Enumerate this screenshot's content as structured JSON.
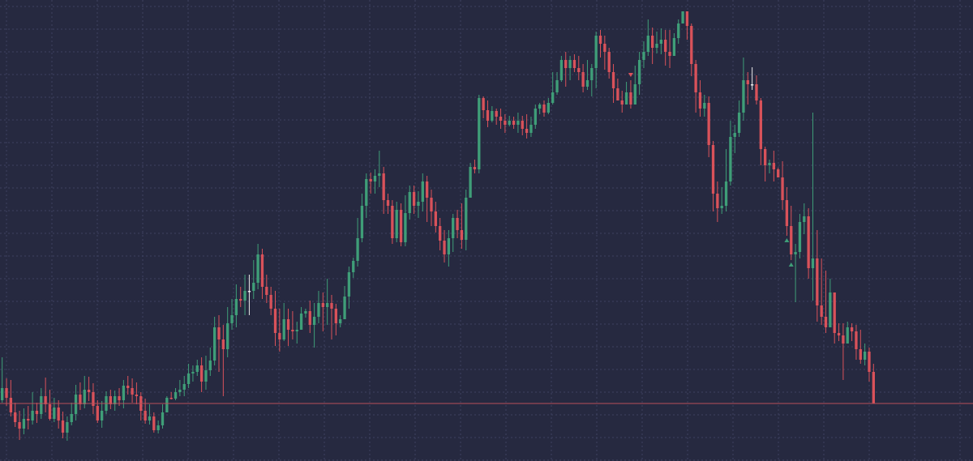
{
  "chart_data": {
    "type": "candlestick",
    "ylim": [
      0,
      569
    ],
    "grid": true,
    "colors": {
      "background": "#262940",
      "grid": "#3d4160",
      "up": "#3f9e78",
      "down": "#d9525a",
      "doji": "#e8e8e8",
      "price_line": "#b8505a"
    },
    "horizontal_line": {
      "value": 71,
      "name": ""
    },
    "markers": [
      {
        "index": 145,
        "kind": "down-arrow",
        "color": "#d9525a"
      },
      {
        "index": 181,
        "kind": "up-arrow",
        "color": "#3f9e78"
      },
      {
        "index": 182,
        "kind": "up-arrow",
        "color": "#3f9e78"
      }
    ],
    "candles": [
      [
        75,
        90,
        128,
        72
      ],
      [
        90,
        78,
        102,
        68
      ],
      [
        78,
        60,
        100,
        55
      ],
      [
        60,
        48,
        72,
        42
      ],
      [
        48,
        40,
        62,
        26
      ],
      [
        40,
        52,
        65,
        33
      ],
      [
        52,
        50,
        68,
        39
      ],
      [
        50,
        62,
        85,
        45
      ],
      [
        62,
        58,
        72,
        47
      ],
      [
        58,
        80,
        90,
        52
      ],
      [
        80,
        70,
        103,
        60
      ],
      [
        70,
        52,
        88,
        50
      ],
      [
        52,
        66,
        78,
        48
      ],
      [
        66,
        50,
        75,
        40
      ],
      [
        50,
        35,
        61,
        28
      ],
      [
        35,
        48,
        55,
        25
      ],
      [
        48,
        58,
        72,
        44
      ],
      [
        58,
        82,
        94,
        50
      ],
      [
        82,
        70,
        97,
        63
      ],
      [
        70,
        88,
        105,
        65
      ],
      [
        88,
        85,
        104,
        74
      ],
      [
        85,
        68,
        96,
        58
      ],
      [
        68,
        50,
        75,
        47
      ],
      [
        50,
        62,
        74,
        41
      ],
      [
        62,
        80,
        86,
        58
      ],
      [
        80,
        70,
        88,
        64
      ],
      [
        70,
        80,
        87,
        62
      ],
      [
        80,
        75,
        90,
        68
      ],
      [
        75,
        93,
        100,
        65
      ],
      [
        93,
        90,
        105,
        82
      ],
      [
        90,
        82,
        102,
        72
      ],
      [
        82,
        80,
        97,
        70
      ],
      [
        80,
        62,
        85,
        50
      ],
      [
        62,
        50,
        77,
        46
      ],
      [
        50,
        55,
        70,
        45
      ],
      [
        55,
        38,
        60,
        35
      ],
      [
        38,
        44,
        50,
        34
      ],
      [
        44,
        60,
        70,
        40
      ],
      [
        60,
        78,
        80,
        75
      ],
      [
        78,
        77,
        85,
        76
      ],
      [
        77,
        85,
        90,
        75
      ],
      [
        85,
        88,
        100,
        80
      ],
      [
        88,
        95,
        105,
        80
      ],
      [
        95,
        108,
        120,
        90
      ],
      [
        108,
        110,
        118,
        98
      ],
      [
        110,
        118,
        125,
        105
      ],
      [
        118,
        98,
        128,
        85
      ],
      [
        98,
        112,
        130,
        88
      ],
      [
        112,
        124,
        140,
        105
      ],
      [
        124,
        165,
        178,
        118
      ],
      [
        165,
        150,
        180,
        110
      ],
      [
        150,
        138,
        168,
        80
      ],
      [
        138,
        170,
        190,
        128
      ],
      [
        170,
        180,
        200,
        162
      ],
      [
        180,
        200,
        218,
        165
      ],
      [
        200,
        198,
        215,
        190
      ],
      [
        198,
        210,
        230,
        180
      ],
      [
        210,
        210,
        230,
        180
      ],
      [
        210,
        220,
        248,
        200
      ],
      [
        220,
        255,
        268,
        212
      ],
      [
        255,
        215,
        262,
        200
      ],
      [
        215,
        205,
        230,
        195
      ],
      [
        205,
        188,
        215,
        180
      ],
      [
        188,
        158,
        210,
        142
      ],
      [
        158,
        150,
        188,
        135
      ],
      [
        150,
        175,
        195,
        148
      ],
      [
        175,
        162,
        188,
        142
      ],
      [
        162,
        160,
        185,
        150
      ],
      [
        160,
        162,
        172,
        145
      ],
      [
        162,
        182,
        190,
        162
      ],
      [
        182,
        185,
        188,
        177
      ],
      [
        185,
        168,
        198,
        158
      ],
      [
        168,
        178,
        195,
        140
      ],
      [
        178,
        195,
        210,
        170
      ],
      [
        195,
        190,
        208,
        160
      ],
      [
        190,
        195,
        225,
        168
      ],
      [
        195,
        188,
        205,
        150
      ],
      [
        188,
        170,
        194,
        155
      ],
      [
        170,
        175,
        180,
        165
      ],
      [
        175,
        203,
        216,
        178
      ],
      [
        203,
        233,
        240,
        188
      ],
      [
        233,
        247,
        251,
        226
      ],
      [
        247,
        275,
        300,
        240
      ],
      [
        275,
        315,
        330,
        270
      ],
      [
        315,
        348,
        355,
        300
      ],
      [
        348,
        345,
        356,
        330
      ],
      [
        345,
        352,
        360,
        330
      ],
      [
        352,
        355,
        383,
        338
      ],
      [
        355,
        322,
        363,
        305
      ],
      [
        322,
        315,
        330,
        305
      ],
      [
        315,
        275,
        322,
        268
      ],
      [
        275,
        310,
        320,
        270
      ],
      [
        310,
        270,
        318,
        265
      ],
      [
        270,
        306,
        328,
        265
      ],
      [
        306,
        332,
        340,
        298
      ],
      [
        332,
        315,
        340,
        305
      ],
      [
        315,
        320,
        333,
        300
      ],
      [
        320,
        345,
        355,
        308
      ],
      [
        345,
        325,
        352,
        295
      ],
      [
        325,
        308,
        335,
        290
      ],
      [
        308,
        290,
        320,
        282
      ],
      [
        290,
        272,
        300,
        260
      ],
      [
        272,
        255,
        285,
        245
      ],
      [
        255,
        275,
        285,
        240
      ],
      [
        275,
        300,
        305,
        258
      ],
      [
        300,
        285,
        310,
        275
      ],
      [
        285,
        273,
        318,
        262
      ],
      [
        273,
        325,
        335,
        260
      ],
      [
        325,
        363,
        368,
        345
      ],
      [
        363,
        360,
        372,
        355
      ],
      [
        360,
        448,
        452,
        355
      ],
      [
        448,
        433,
        450,
        423
      ],
      [
        433,
        420,
        445,
        412
      ],
      [
        420,
        432,
        438,
        418
      ],
      [
        432,
        425,
        435,
        415
      ],
      [
        425,
        420,
        435,
        410
      ],
      [
        420,
        415,
        428,
        405
      ],
      [
        415,
        420,
        426,
        413
      ],
      [
        420,
        415,
        425,
        410
      ],
      [
        415,
        420,
        430,
        405
      ],
      [
        420,
        410,
        426,
        402
      ],
      [
        410,
        405,
        428,
        398
      ],
      [
        405,
        415,
        425,
        400
      ],
      [
        415,
        435,
        440,
        410
      ],
      [
        435,
        440,
        442,
        428
      ],
      [
        440,
        430,
        445,
        425
      ],
      [
        430,
        442,
        448,
        428
      ],
      [
        442,
        455,
        480,
        440
      ],
      [
        455,
        470,
        480,
        452
      ],
      [
        470,
        495,
        500,
        468
      ],
      [
        495,
        485,
        505,
        462
      ],
      [
        485,
        495,
        500,
        470
      ],
      [
        495,
        485,
        502,
        480
      ],
      [
        485,
        480,
        500,
        470
      ],
      [
        480,
        462,
        490,
        455
      ],
      [
        462,
        470,
        495,
        458
      ],
      [
        470,
        485,
        490,
        450
      ],
      [
        485,
        525,
        530,
        460
      ],
      [
        525,
        515,
        532,
        498
      ],
      [
        515,
        505,
        525,
        483
      ],
      [
        505,
        480,
        510,
        472
      ],
      [
        480,
        460,
        490,
        442
      ],
      [
        460,
        445,
        472,
        445
      ],
      [
        445,
        440,
        457,
        430
      ],
      [
        440,
        455,
        468,
        440
      ],
      [
        455,
        440,
        470,
        435
      ],
      [
        440,
        465,
        488,
        440
      ],
      [
        465,
        495,
        505,
        452
      ],
      [
        495,
        505,
        518,
        485
      ],
      [
        505,
        525,
        545,
        500
      ],
      [
        525,
        510,
        535,
        490
      ],
      [
        510,
        515,
        530,
        503
      ],
      [
        515,
        520,
        534,
        502
      ],
      [
        520,
        505,
        532,
        488
      ],
      [
        505,
        500,
        532,
        485
      ],
      [
        500,
        522,
        528,
        500
      ],
      [
        522,
        540,
        545,
        515
      ],
      [
        540,
        555,
        550,
        545
      ],
      [
        555,
        537,
        555,
        520
      ],
      [
        537,
        490,
        540,
        475
      ],
      [
        490,
        455,
        495,
        430
      ],
      [
        455,
        435,
        470,
        425
      ],
      [
        435,
        442,
        452,
        425
      ],
      [
        442,
        390,
        450,
        375
      ],
      [
        390,
        330,
        395,
        308
      ],
      [
        330,
        312,
        345,
        295
      ],
      [
        312,
        315,
        338,
        305
      ],
      [
        315,
        345,
        385,
        308
      ],
      [
        345,
        400,
        420,
        340
      ],
      [
        400,
        405,
        415,
        380
      ],
      [
        405,
        430,
        445,
        400
      ],
      [
        430,
        470,
        498,
        420
      ],
      [
        470,
        465,
        480,
        440
      ],
      [
        465,
        465,
        486,
        458
      ],
      [
        465,
        445,
        476,
        440
      ],
      [
        445,
        385,
        448,
        365
      ],
      [
        385,
        365,
        388,
        345
      ],
      [
        365,
        368,
        372,
        355
      ],
      [
        368,
        360,
        383,
        345
      ],
      [
        360,
        350,
        362,
        350
      ],
      [
        350,
        322,
        370,
        310
      ],
      [
        322,
        290,
        338,
        278
      ],
      [
        290,
        255,
        315,
        248
      ],
      [
        255,
        258,
        268,
        196
      ],
      [
        258,
        295,
        305,
        250
      ],
      [
        295,
        302,
        318,
        280
      ],
      [
        302,
        238,
        312,
        225
      ],
      [
        238,
        250,
        430,
        198
      ],
      [
        250,
        192,
        285,
        172
      ],
      [
        192,
        178,
        250,
        168
      ],
      [
        178,
        165,
        235,
        158
      ],
      [
        165,
        208,
        225,
        165
      ],
      [
        208,
        158,
        185,
        145
      ],
      [
        158,
        155,
        170,
        148
      ],
      [
        155,
        145,
        170,
        100
      ],
      [
        145,
        165,
        172,
        150
      ],
      [
        165,
        160,
        170,
        148
      ],
      [
        160,
        138,
        168,
        125
      ],
      [
        138,
        125,
        162,
        120
      ],
      [
        125,
        135,
        145,
        118
      ],
      [
        135,
        110,
        140,
        98
      ],
      [
        110,
        71,
        120,
        71
      ]
    ]
  }
}
